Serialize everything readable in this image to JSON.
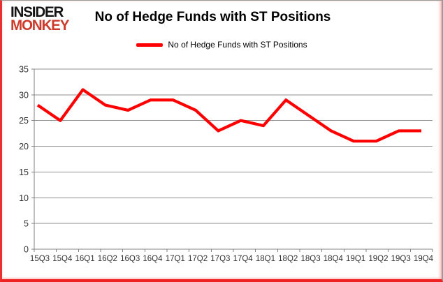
{
  "brand": {
    "line1": "INSIDER",
    "line2": "MONKEY"
  },
  "title": "No of Hedge Funds with ST Positions",
  "legend": {
    "label": "No of Hedge Funds with ST Positions"
  },
  "colors": {
    "line": "#fe0000",
    "grid": "#8f8f8f",
    "axis": "#808080",
    "axis_text": "#303030",
    "brand_black": "#141414",
    "brand_red": "#cd3a2b",
    "frame_red": "#ee2222",
    "frame_gray": "#9a9a9a"
  },
  "chart_data": {
    "type": "line",
    "title": "No of Hedge Funds with ST Positions",
    "categories": [
      "15Q3",
      "15Q4",
      "16Q1",
      "16Q2",
      "16Q3",
      "16Q4",
      "17Q1",
      "17Q2",
      "17Q3",
      "17Q4",
      "18Q1",
      "18Q2",
      "18Q3",
      "18Q4",
      "19Q1",
      "19Q2",
      "19Q3",
      "19Q4"
    ],
    "series": [
      {
        "name": "No of Hedge Funds with ST Positions",
        "values": [
          28,
          25,
          31,
          28,
          27,
          29,
          29,
          27,
          23,
          25,
          24,
          29,
          26,
          23,
          21,
          21,
          23,
          23
        ]
      }
    ],
    "xlabel": "",
    "ylabel": "",
    "ylim": [
      0,
      35
    ],
    "ytick_step": 5,
    "yticks": [
      0,
      5,
      10,
      15,
      20,
      25,
      30,
      35
    ],
    "grid": true,
    "legend_position": "top"
  }
}
